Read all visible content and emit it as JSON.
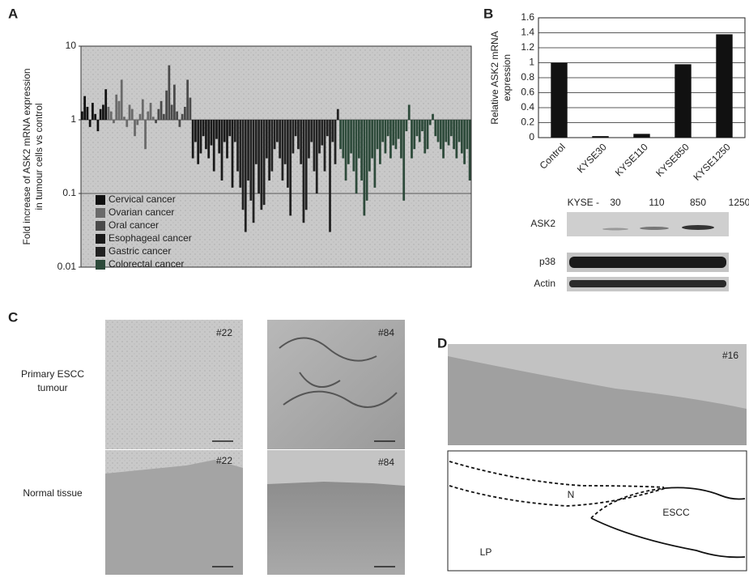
{
  "panel_letters": [
    "A",
    "B",
    "C",
    "D"
  ],
  "chart_data": [
    {
      "type": "bar",
      "log_y": true,
      "ylim": [
        0.01,
        10
      ],
      "yticks": [
        0.01,
        0.1,
        1,
        10
      ],
      "grid": true,
      "legend": "lower left",
      "ylabel": [
        "Fold increase of ASK2 mRNA expression",
        "in tumour cells vs control"
      ],
      "series": [
        {
          "name": "Cervical cancer",
          "color": "#111111",
          "values": [
            1.3,
            2.1,
            1.5,
            0.8,
            1.7,
            1.2,
            0.7,
            1.4,
            1.6,
            2.6
          ]
        },
        {
          "name": "Ovarian cancer",
          "color": "#6a6a6a",
          "values": [
            1.5,
            1.3,
            0.9,
            2.2,
            1.8,
            3.5,
            1.1,
            0.8,
            1.6,
            1.4,
            0.6,
            0.85,
            1.2,
            1.9,
            0.4,
            1.3,
            1.7,
            1.1
          ]
        },
        {
          "name": "Oral cancer",
          "color": "#4a4a4a",
          "values": [
            0.9,
            1.4,
            1.8,
            1.2,
            2.5,
            5.5,
            1.6,
            3.0,
            1.3,
            0.8,
            1.2,
            1.5,
            3.5,
            2.0
          ]
        },
        {
          "name": "Esophageal cancer",
          "color": "#1a1a1a",
          "values": [
            0.3,
            0.5,
            0.25,
            0.35,
            0.6,
            0.4,
            0.3,
            0.45,
            0.2,
            0.55,
            0.35,
            0.15,
            0.5,
            0.3,
            0.6,
            0.12
          ]
        },
        {
          "name": "Gastric cancer",
          "color": "#222222",
          "values": [
            0.5,
            0.2,
            0.12,
            0.06,
            0.03,
            0.15,
            0.08,
            0.04,
            0.25,
            0.1,
            0.06,
            0.07,
            0.3,
            0.15,
            0.2,
            0.4,
            0.5,
            0.3,
            0.15,
            0.25,
            0.12,
            0.05,
            0.35,
            0.6,
            0.4,
            0.25,
            0.04,
            0.06,
            0.3,
            0.5,
            0.2,
            0.1,
            0.35,
            0.45,
            0.2,
            0.6,
            0.03,
            0.5,
            0.25,
            1.4
          ]
        },
        {
          "name": "Colorectal cancer",
          "color": "#2d4a3a",
          "values": [
            0.4,
            0.3,
            0.15,
            0.25,
            0.35,
            0.2,
            0.1,
            0.3,
            0.15,
            0.05,
            0.08,
            0.2,
            0.3,
            0.12,
            0.4,
            0.25,
            0.5,
            0.35,
            0.6,
            0.3,
            0.45,
            0.4,
            0.55,
            0.3,
            0.08,
            0.7,
            1.6,
            0.3,
            0.4,
            0.6,
            0.5,
            0.7,
            0.35,
            0.4,
            0.85,
            1.2,
            0.6,
            0.5,
            0.4,
            0.3,
            0.5,
            0.45,
            0.6,
            0.4,
            0.3,
            0.5,
            0.35,
            0.25,
            0.4,
            0.15
          ]
        }
      ]
    },
    {
      "type": "bar",
      "ylabel": [
        "Relative ASK2 mRNA",
        "expression"
      ],
      "categories": [
        "Control",
        "KYSE30",
        "KYSE110",
        "KYSE850",
        "KYSE1250"
      ],
      "values": [
        1,
        0.02,
        0.05,
        0.98,
        1.38
      ],
      "color": "#111111",
      "ylim": [
        0,
        1.6
      ],
      "yticks": [
        0,
        0.2,
        0.4,
        0.6,
        0.8,
        1,
        1.2,
        1.4,
        1.6
      ],
      "grid": true
    }
  ],
  "blot": {
    "header": "KYSE -",
    "lanes": [
      "30",
      "110",
      "850",
      "1250"
    ],
    "rows": [
      "ASK2",
      "p38",
      "Actin"
    ]
  },
  "panel_c": {
    "row_labels": [
      [
        "Primary ESCC",
        "tumour"
      ],
      [
        "Normal tissue"
      ]
    ],
    "image_tags": [
      "#22",
      "#84",
      "#22",
      "#84"
    ]
  },
  "panel_d": {
    "image_tag": "#16",
    "regions": [
      "N",
      "ESCC",
      "LP"
    ]
  }
}
